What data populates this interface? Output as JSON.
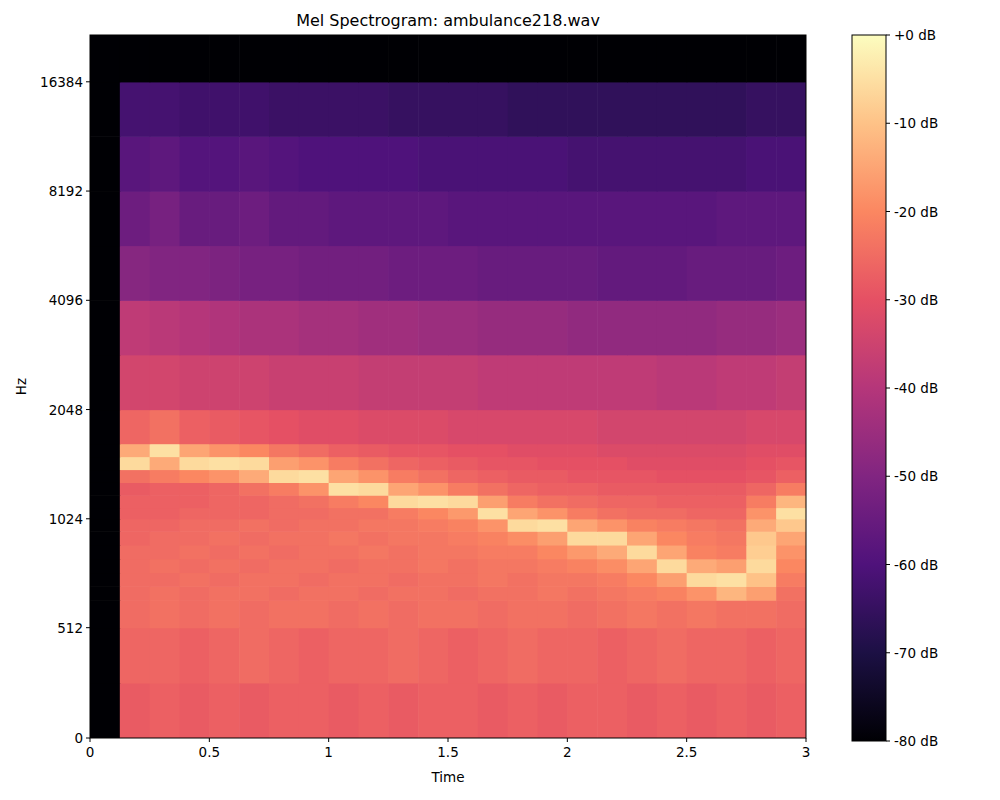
{
  "chart_data": {
    "type": "heatmap",
    "title": "Mel Spectrogram: ambulance218.wav",
    "x_label": "Time",
    "y_label": "Hz",
    "xlim": [
      0,
      3
    ],
    "xticks": [
      0,
      0.5,
      1,
      1.5,
      2,
      2.5,
      3
    ],
    "ylim": [
      0,
      22050
    ],
    "yticks": [
      0,
      512,
      1024,
      2048,
      4096,
      8192,
      16384
    ],
    "x_bins": [
      0,
      0.125,
      0.25,
      0.375,
      0.5,
      0.625,
      0.75,
      0.875,
      1,
      1.125,
      1.25,
      1.375,
      1.5,
      1.625,
      1.75,
      1.875,
      2,
      2.125,
      2.25,
      2.375,
      2.5,
      2.625,
      2.75,
      2.875,
      3
    ],
    "y_bins": [
      0,
      256,
      512,
      640,
      704,
      768,
      832,
      896,
      960,
      1024,
      1100,
      1190,
      1290,
      1400,
      1520,
      1650,
      2048,
      2900,
      4096,
      5800,
      8192,
      11600,
      16384,
      22050
    ],
    "cells": [
      [
        -80,
        -28,
        -27,
        -28,
        -27,
        -28,
        -27,
        -27,
        -28,
        -27,
        -28,
        -27,
        -27,
        -28,
        -27,
        -28,
        -27,
        -27,
        -28,
        -27,
        -28,
        -27,
        -28,
        -27
      ],
      [
        -80,
        -26,
        -26,
        -27,
        -26,
        -25,
        -26,
        -27,
        -26,
        -26,
        -25,
        -26,
        -27,
        -26,
        -25,
        -26,
        -26,
        -27,
        -26,
        -25,
        -26,
        -26,
        -27,
        -26
      ],
      [
        -80,
        -25,
        -24,
        -25,
        -24,
        -25,
        -24,
        -24,
        -25,
        -24,
        -25,
        -24,
        -24,
        -25,
        -24,
        -24,
        -25,
        -24,
        -23,
        -24,
        -23,
        -24,
        -24,
        -25
      ],
      [
        -80,
        -25,
        -24,
        -25,
        -24,
        -24,
        -25,
        -24,
        -24,
        -25,
        -24,
        -24,
        -25,
        -24,
        -24,
        -23,
        -24,
        -23,
        -22,
        -21,
        -18,
        -12,
        -16,
        -24
      ],
      [
        -80,
        -25,
        -25,
        -24,
        -25,
        -24,
        -24,
        -25,
        -24,
        -24,
        -25,
        -24,
        -24,
        -23,
        -24,
        -23,
        -23,
        -22,
        -20,
        -16,
        -6,
        -5,
        -10,
        -22
      ],
      [
        -80,
        -25,
        -24,
        -25,
        -24,
        -25,
        -24,
        -24,
        -25,
        -24,
        -24,
        -23,
        -24,
        -23,
        -23,
        -22,
        -21,
        -19,
        -15,
        -6,
        -14,
        -16,
        -6,
        -20
      ],
      [
        -80,
        -25,
        -25,
        -24,
        -25,
        -24,
        -25,
        -24,
        -24,
        -23,
        -24,
        -23,
        -23,
        -22,
        -22,
        -20,
        -17,
        -14,
        -6,
        -15,
        -21,
        -22,
        -8,
        -18
      ],
      [
        -80,
        -26,
        -25,
        -25,
        -24,
        -25,
        -24,
        -24,
        -23,
        -24,
        -23,
        -23,
        -22,
        -21,
        -19,
        -16,
        -6,
        -6,
        -15,
        -20,
        -22,
        -23,
        -9,
        -15
      ],
      [
        -80,
        -26,
        -26,
        -25,
        -25,
        -24,
        -25,
        -24,
        -24,
        -23,
        -23,
        -22,
        -21,
        -18,
        -6,
        -5,
        -15,
        -18,
        -21,
        -22,
        -23,
        -24,
        -14,
        -9
      ],
      [
        -80,
        -27,
        -27,
        -26,
        -26,
        -26,
        -25,
        -25,
        -24,
        -24,
        -22,
        -20,
        -17,
        -5,
        -15,
        -18,
        -22,
        -24,
        -25,
        -25,
        -26,
        -26,
        -18,
        -5
      ],
      [
        -80,
        -27,
        -27,
        -27,
        -26,
        -26,
        -25,
        -24,
        -22,
        -20,
        -6,
        -5,
        -6,
        -16,
        -22,
        -24,
        -25,
        -26,
        -26,
        -27,
        -27,
        -27,
        -22,
        -12
      ],
      [
        -80,
        -28,
        -27,
        -27,
        -26,
        -24,
        -22,
        -18,
        -5,
        -6,
        -15,
        -18,
        -22,
        -24,
        -26,
        -27,
        -27,
        -28,
        -28,
        -28,
        -28,
        -28,
        -26,
        -22
      ],
      [
        -80,
        -24,
        -22,
        -20,
        -18,
        -14,
        -6,
        -5,
        -15,
        -18,
        -22,
        -24,
        -26,
        -27,
        -28,
        -28,
        -29,
        -29,
        -29,
        -30,
        -30,
        -30,
        -29,
        -27
      ],
      [
        -80,
        -6,
        -14,
        -6,
        -5,
        -6,
        -16,
        -18,
        -22,
        -24,
        -26,
        -27,
        -28,
        -29,
        -29,
        -30,
        -30,
        -30,
        -31,
        -31,
        -31,
        -31,
        -30,
        -29
      ],
      [
        -80,
        -14,
        -5,
        -15,
        -18,
        -20,
        -23,
        -25,
        -27,
        -28,
        -29,
        -29,
        -30,
        -30,
        -31,
        -31,
        -31,
        -32,
        -32,
        -32,
        -32,
        -32,
        -31,
        -31
      ],
      [
        -80,
        -26,
        -24,
        -27,
        -28,
        -29,
        -30,
        -31,
        -31,
        -32,
        -32,
        -32,
        -33,
        -33,
        -33,
        -33,
        -33,
        -34,
        -34,
        -34,
        -34,
        -34,
        -33,
        -33
      ],
      [
        -80,
        -34,
        -34,
        -35,
        -35,
        -35,
        -36,
        -36,
        -36,
        -37,
        -37,
        -37,
        -37,
        -38,
        -38,
        -38,
        -38,
        -38,
        -38,
        -39,
        -39,
        -38,
        -38,
        -37
      ],
      [
        -80,
        -38,
        -39,
        -40,
        -41,
        -42,
        -42,
        -43,
        -43,
        -44,
        -44,
        -45,
        -45,
        -46,
        -46,
        -46,
        -47,
        -47,
        -47,
        -47,
        -47,
        -46,
        -46,
        -45
      ],
      [
        -80,
        -49,
        -50,
        -50,
        -51,
        -52,
        -52,
        -53,
        -53,
        -53,
        -54,
        -54,
        -54,
        -55,
        -55,
        -55,
        -55,
        -56,
        -56,
        -56,
        -55,
        -55,
        -55,
        -54
      ],
      [
        -80,
        -54,
        -52,
        -55,
        -55,
        -54,
        -56,
        -56,
        -57,
        -57,
        -57,
        -57,
        -58,
        -58,
        -58,
        -58,
        -58,
        -58,
        -58,
        -58,
        -58,
        -57,
        -57,
        -57
      ],
      [
        -80,
        -58,
        -57,
        -59,
        -59,
        -58,
        -59,
        -60,
        -60,
        -60,
        -60,
        -61,
        -61,
        -61,
        -61,
        -61,
        -62,
        -62,
        -62,
        -62,
        -62,
        -62,
        -61,
        -61
      ],
      [
        -80,
        -62,
        -62,
        -63,
        -63,
        -63,
        -64,
        -64,
        -64,
        -64,
        -65,
        -65,
        -65,
        -65,
        -66,
        -66,
        -66,
        -66,
        -66,
        -66,
        -66,
        -66,
        -65,
        -65
      ],
      [
        -80,
        -80,
        -80,
        -80,
        -80,
        -80,
        -80,
        -80,
        -80,
        -80,
        -80,
        -80,
        -80,
        -80,
        -80,
        -80,
        -80,
        -80,
        -80,
        -80,
        -80,
        -80,
        -80,
        -80
      ]
    ],
    "colorbar": {
      "range": [
        -80,
        0
      ],
      "ticks": [
        {
          "value": 0,
          "label": "+0 dB"
        },
        {
          "value": -10,
          "label": "-10 dB"
        },
        {
          "value": -20,
          "label": "-20 dB"
        },
        {
          "value": -30,
          "label": "-30 dB"
        },
        {
          "value": -40,
          "label": "-40 dB"
        },
        {
          "value": -50,
          "label": "-50 dB"
        },
        {
          "value": -60,
          "label": "-60 dB"
        },
        {
          "value": -70,
          "label": "-70 dB"
        },
        {
          "value": -80,
          "label": "-80 dB"
        }
      ]
    }
  }
}
